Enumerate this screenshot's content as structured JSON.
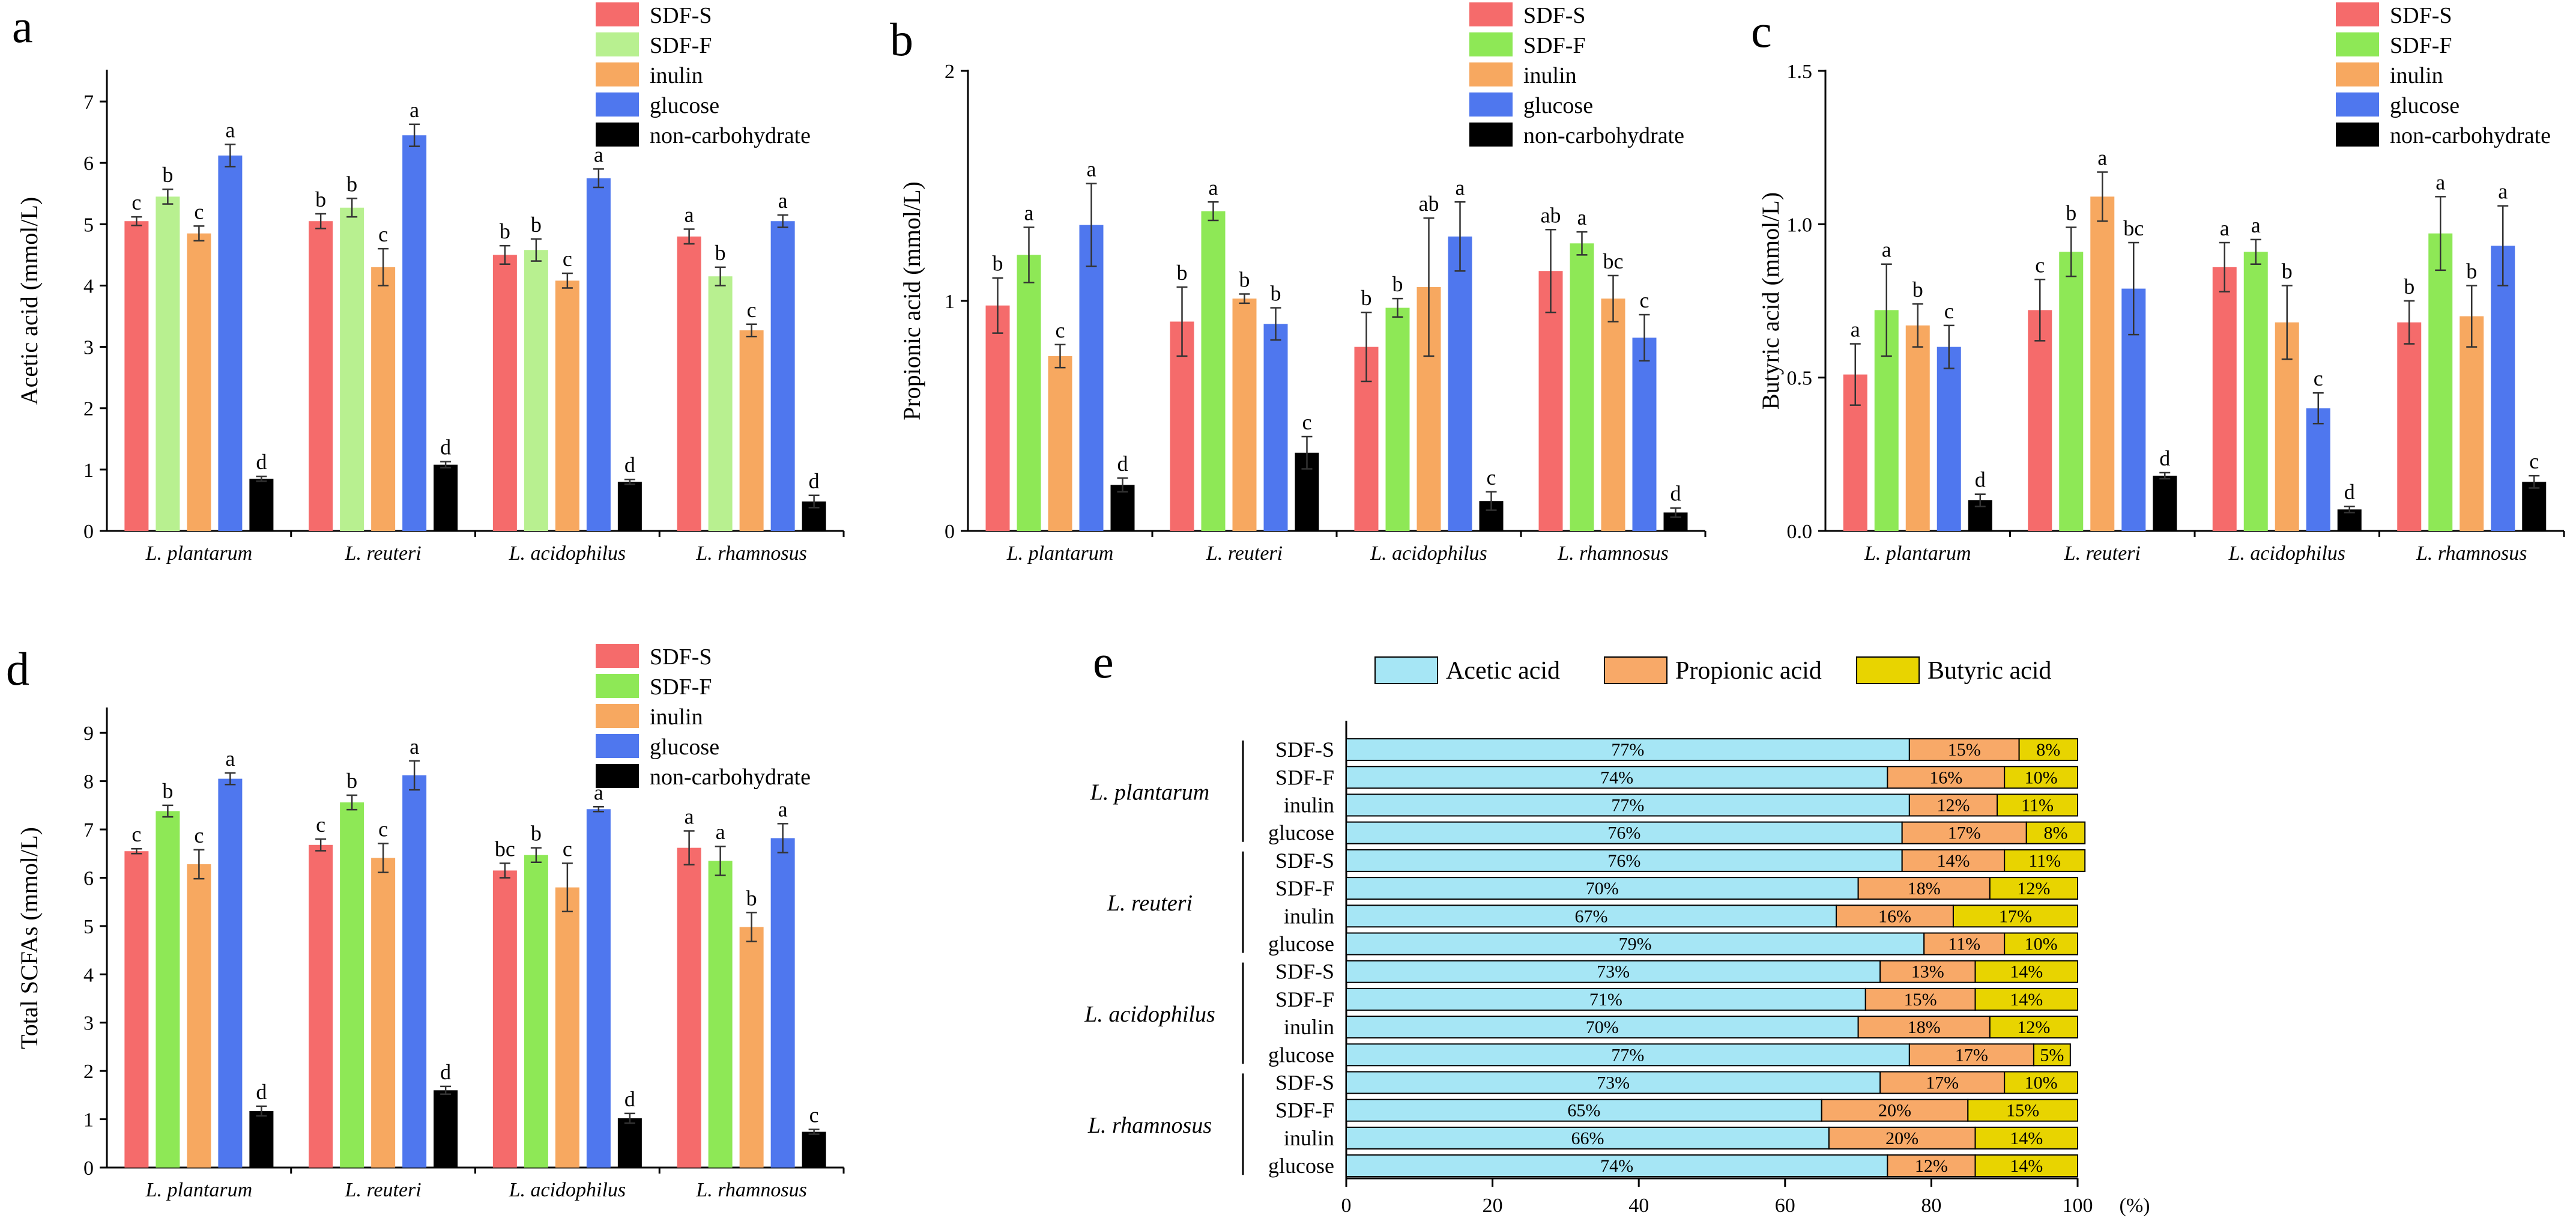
{
  "chart_data": [
    {
      "panel": "a",
      "type": "bar",
      "ylabel": "Acetic acid (mmol/L)",
      "ylim": [
        0,
        7.5
      ],
      "yticks": [
        0,
        1,
        2,
        3,
        4,
        5,
        6,
        7
      ],
      "ytick_labels": [
        "0",
        "1",
        "2",
        "3",
        "4",
        "5",
        "6",
        "7"
      ],
      "categories": [
        "L. plantarum",
        "L. reuteri",
        "L. acidophilus",
        "L. rhamnosus"
      ],
      "legend_position": "top-right",
      "series": [
        {
          "name": "SDF-S",
          "color": "#F56B6B",
          "values": [
            5.05,
            5.05,
            4.5,
            4.8
          ],
          "errors": [
            0.07,
            0.12,
            0.15,
            0.12
          ],
          "labels": [
            "c",
            "b",
            "b",
            "a"
          ]
        },
        {
          "name": "SDF-F",
          "color": "#B8F090",
          "values": [
            5.45,
            5.27,
            4.58,
            4.15
          ],
          "errors": [
            0.12,
            0.15,
            0.18,
            0.15
          ],
          "labels": [
            "b",
            "b",
            "b",
            "b"
          ]
        },
        {
          "name": "inulin",
          "color": "#F7A860",
          "values": [
            4.85,
            4.3,
            4.08,
            3.27
          ],
          "errors": [
            0.12,
            0.3,
            0.12,
            0.1
          ],
          "labels": [
            "c",
            "c",
            "c",
            "c"
          ]
        },
        {
          "name": "glucose",
          "color": "#4F77EE",
          "values": [
            6.12,
            6.45,
            5.75,
            5.05
          ],
          "errors": [
            0.18,
            0.18,
            0.15,
            0.1
          ],
          "labels": [
            "a",
            "a",
            "a",
            "a"
          ]
        },
        {
          "name": "non-carbohydrate",
          "color": "#000000",
          "values": [
            0.85,
            1.08,
            0.8,
            0.48
          ],
          "errors": [
            0.04,
            0.05,
            0.04,
            0.1
          ],
          "labels": [
            "d",
            "d",
            "d",
            "d"
          ]
        }
      ]
    },
    {
      "panel": "b",
      "type": "bar",
      "ylabel": "Propionic acid (mmol/L)",
      "ylim": [
        0,
        2
      ],
      "yticks": [
        0,
        1,
        2
      ],
      "ytick_labels": [
        "0",
        "1",
        "2"
      ],
      "categories": [
        "L. plantarum",
        "L. reuteri",
        "L. acidophilus",
        "L. rhamnosus"
      ],
      "legend_position": "top-right",
      "series": [
        {
          "name": "SDF-S",
          "color": "#F56B6B",
          "values": [
            0.98,
            0.91,
            0.8,
            1.13
          ],
          "errors": [
            0.12,
            0.15,
            0.15,
            0.18
          ],
          "labels": [
            "b",
            "b",
            "b",
            "ab"
          ]
        },
        {
          "name": "SDF-F",
          "color": "#8EE856",
          "values": [
            1.2,
            1.39,
            0.97,
            1.25
          ],
          "errors": [
            0.12,
            0.04,
            0.04,
            0.05
          ],
          "labels": [
            "a",
            "a",
            "b",
            "a"
          ]
        },
        {
          "name": "inulin",
          "color": "#F7A860",
          "values": [
            0.76,
            1.01,
            1.06,
            1.01
          ],
          "errors": [
            0.05,
            0.02,
            0.3,
            0.1
          ],
          "labels": [
            "c",
            "b",
            "ab",
            "bc"
          ]
        },
        {
          "name": "glucose",
          "color": "#4F77EE",
          "values": [
            1.33,
            0.9,
            1.28,
            0.84
          ],
          "errors": [
            0.18,
            0.07,
            0.15,
            0.1
          ],
          "labels": [
            "a",
            "b",
            "a",
            "c"
          ]
        },
        {
          "name": "non-carbohydrate",
          "color": "#000000",
          "values": [
            0.2,
            0.34,
            0.13,
            0.08
          ],
          "errors": [
            0.03,
            0.07,
            0.04,
            0.02
          ],
          "labels": [
            "d",
            "c",
            "c",
            "d"
          ]
        }
      ]
    },
    {
      "panel": "c",
      "type": "bar",
      "ylabel": "Butyric acid (mmol/L)",
      "ylim": [
        0,
        1.5
      ],
      "yticks": [
        0,
        0.5,
        1,
        1.5
      ],
      "ytick_labels": [
        "0.0",
        "0.5",
        "1.0",
        "1.5"
      ],
      "categories": [
        "L. plantarum",
        "L. reuteri",
        "L. acidophilus",
        "L. rhamnosus"
      ],
      "legend_position": "top-right",
      "series": [
        {
          "name": "SDF-S",
          "color": "#F56B6B",
          "values": [
            0.51,
            0.72,
            0.86,
            0.68
          ],
          "errors": [
            0.1,
            0.1,
            0.08,
            0.07
          ],
          "labels": [
            "a",
            "c",
            "a",
            "b"
          ]
        },
        {
          "name": "SDF-F",
          "color": "#8EE856",
          "values": [
            0.72,
            0.91,
            0.91,
            0.97
          ],
          "errors": [
            0.15,
            0.08,
            0.04,
            0.12
          ],
          "labels": [
            "a",
            "b",
            "a",
            "a"
          ]
        },
        {
          "name": "inulin",
          "color": "#F7A860",
          "values": [
            0.67,
            1.09,
            0.68,
            0.7
          ],
          "errors": [
            0.07,
            0.08,
            0.12,
            0.1
          ],
          "labels": [
            "b",
            "a",
            "b",
            "b"
          ]
        },
        {
          "name": "glucose",
          "color": "#4F77EE",
          "values": [
            0.6,
            0.79,
            0.4,
            0.93
          ],
          "errors": [
            0.07,
            0.15,
            0.05,
            0.13
          ],
          "labels": [
            "c",
            "bc",
            "c",
            "a"
          ]
        },
        {
          "name": "non-carbohydrate",
          "color": "#000000",
          "values": [
            0.1,
            0.18,
            0.07,
            0.16
          ],
          "errors": [
            0.02,
            0.01,
            0.01,
            0.02
          ],
          "labels": [
            "d",
            "d",
            "d",
            "c"
          ]
        }
      ]
    },
    {
      "panel": "d",
      "type": "bar",
      "ylabel": "Total SCFAs (mmol/L)",
      "ylim": [
        0,
        9.5
      ],
      "yticks": [
        0,
        1,
        2,
        3,
        4,
        5,
        6,
        7,
        8,
        9
      ],
      "ytick_labels": [
        "0",
        "1",
        "2",
        "3",
        "4",
        "5",
        "6",
        "7",
        "8",
        "9"
      ],
      "categories": [
        "L. plantarum",
        "L. reuteri",
        "L. acidophilus",
        "L. rhamnosus"
      ],
      "legend_position": "top-right",
      "series": [
        {
          "name": "SDF-S",
          "color": "#F56B6B",
          "values": [
            6.55,
            6.68,
            6.15,
            6.62
          ],
          "errors": [
            0.05,
            0.12,
            0.15,
            0.35
          ],
          "labels": [
            "c",
            "c",
            "bc",
            "a"
          ]
        },
        {
          "name": "SDF-F",
          "color": "#8EE856",
          "values": [
            7.38,
            7.56,
            6.47,
            6.35
          ],
          "errors": [
            0.12,
            0.15,
            0.15,
            0.3
          ],
          "labels": [
            "b",
            "b",
            "b",
            "a"
          ]
        },
        {
          "name": "inulin",
          "color": "#F7A860",
          "values": [
            6.28,
            6.41,
            5.8,
            4.98
          ],
          "errors": [
            0.3,
            0.3,
            0.5,
            0.3
          ],
          "labels": [
            "c",
            "c",
            "c",
            "b"
          ]
        },
        {
          "name": "glucose",
          "color": "#4F77EE",
          "values": [
            8.05,
            8.12,
            7.42,
            6.82
          ],
          "errors": [
            0.12,
            0.3,
            0.05,
            0.3
          ],
          "labels": [
            "a",
            "a",
            "a",
            "a"
          ]
        },
        {
          "name": "non-carbohydrate",
          "color": "#000000",
          "values": [
            1.17,
            1.6,
            1.02,
            0.74
          ],
          "errors": [
            0.1,
            0.08,
            0.1,
            0.05
          ],
          "labels": [
            "d",
            "d",
            "d",
            "c"
          ]
        }
      ]
    },
    {
      "panel": "e",
      "type": "bar",
      "orientation": "horizontal",
      "stacked": true,
      "xlim": [
        0,
        100
      ],
      "xticks": [
        0,
        20,
        40,
        60,
        80,
        100
      ],
      "xlabel": "(%)",
      "legend_position": "top",
      "groups": [
        "L. plantarum",
        "L. reuteri",
        "L. acidophilus",
        "L. rhamnosus"
      ],
      "row_labels": [
        "SDF-S",
        "SDF-F",
        "inulin",
        "glucose"
      ],
      "series": [
        {
          "name": "Acetic acid",
          "color": "#A6E6F5"
        },
        {
          "name": "Propionic acid",
          "color": "#F8A968"
        },
        {
          "name": "Butyric acid",
          "color": "#E8D400"
        }
      ],
      "rows": [
        {
          "group": "L. plantarum",
          "label": "SDF-S",
          "values": [
            77,
            15,
            8
          ]
        },
        {
          "group": "L. plantarum",
          "label": "SDF-F",
          "values": [
            74,
            16,
            10
          ]
        },
        {
          "group": "L. plantarum",
          "label": "inulin",
          "values": [
            77,
            12,
            11
          ]
        },
        {
          "group": "L. plantarum",
          "label": "glucose",
          "values": [
            76,
            17,
            8
          ]
        },
        {
          "group": "L. reuteri",
          "label": "SDF-S",
          "values": [
            76,
            14,
            11
          ]
        },
        {
          "group": "L. reuteri",
          "label": "SDF-F",
          "values": [
            70,
            18,
            12
          ]
        },
        {
          "group": "L. reuteri",
          "label": "inulin",
          "values": [
            67,
            16,
            17
          ]
        },
        {
          "group": "L. reuteri",
          "label": "glucose",
          "values": [
            79,
            11,
            10
          ]
        },
        {
          "group": "L. acidophilus",
          "label": "SDF-S",
          "values": [
            73,
            13,
            14
          ]
        },
        {
          "group": "L. acidophilus",
          "label": "SDF-F",
          "values": [
            71,
            15,
            14
          ]
        },
        {
          "group": "L. acidophilus",
          "label": "inulin",
          "values": [
            70,
            18,
            12
          ]
        },
        {
          "group": "L. acidophilus",
          "label": "glucose",
          "values": [
            77,
            17,
            5
          ]
        },
        {
          "group": "L. rhamnosus",
          "label": "SDF-S",
          "values": [
            73,
            17,
            10
          ]
        },
        {
          "group": "L. rhamnosus",
          "label": "SDF-F",
          "values": [
            65,
            20,
            15
          ]
        },
        {
          "group": "L. rhamnosus",
          "label": "inulin",
          "values": [
            66,
            20,
            14
          ]
        },
        {
          "group": "L. rhamnosus",
          "label": "glucose",
          "values": [
            74,
            12,
            14
          ]
        }
      ]
    }
  ]
}
